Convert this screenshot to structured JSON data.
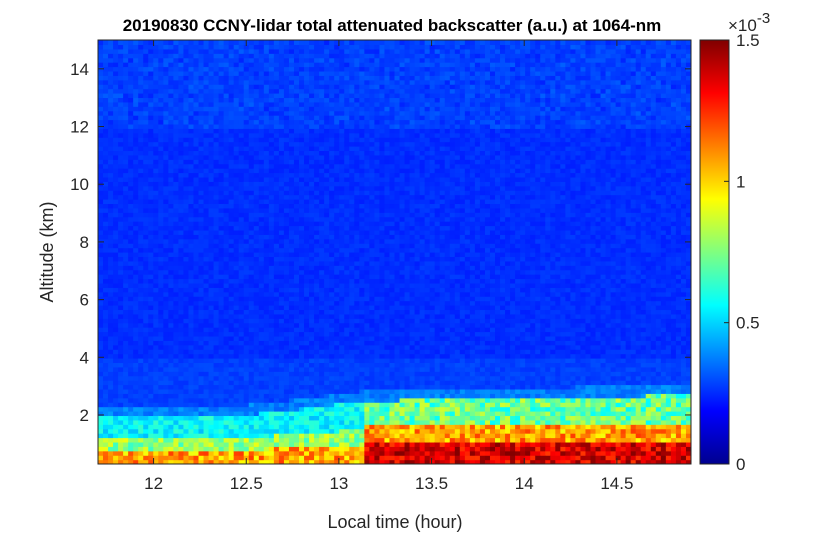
{
  "chart_data": {
    "type": "heatmap",
    "title": "20190830 CCNY-lidar total attenuated backscatter (a.u.) at 1064-nm",
    "xlabel": "Local time (hour)",
    "ylabel": "Altitude (km)",
    "xlim": [
      11.7,
      14.9
    ],
    "ylim": [
      0.3,
      15.0
    ],
    "xticks": [
      "12",
      "12.5",
      "13",
      "13.5",
      "14",
      "14.5"
    ],
    "xtick_values": [
      12,
      12.5,
      13,
      13.5,
      14,
      14.5
    ],
    "yticks": [
      "2",
      "4",
      "6",
      "8",
      "10",
      "12",
      "14"
    ],
    "ytick_values": [
      2,
      4,
      6,
      8,
      10,
      12,
      14
    ],
    "colorbar": {
      "colormap": "jet",
      "clim": [
        0,
        1.5
      ],
      "ticks": [
        "0",
        "0.5",
        "1",
        "1.5"
      ],
      "tick_values": [
        0,
        0.5,
        1,
        1.5
      ],
      "exponent_label": "×10",
      "exponent_power": "-3"
    },
    "features": {
      "aerosol_layer_top_km": [
        {
          "time": 11.7,
          "altitude": 2.0
        },
        {
          "time": 12.5,
          "altitude": 2.0
        },
        {
          "time": 13.15,
          "altitude": 2.5
        },
        {
          "time": 14.0,
          "altitude": 2.6
        },
        {
          "time": 14.9,
          "altitude": 2.7
        }
      ],
      "near_surface_max_value": 1.5,
      "free_troposphere_value": 0.1,
      "transition_time_hour": 13.15
    }
  }
}
